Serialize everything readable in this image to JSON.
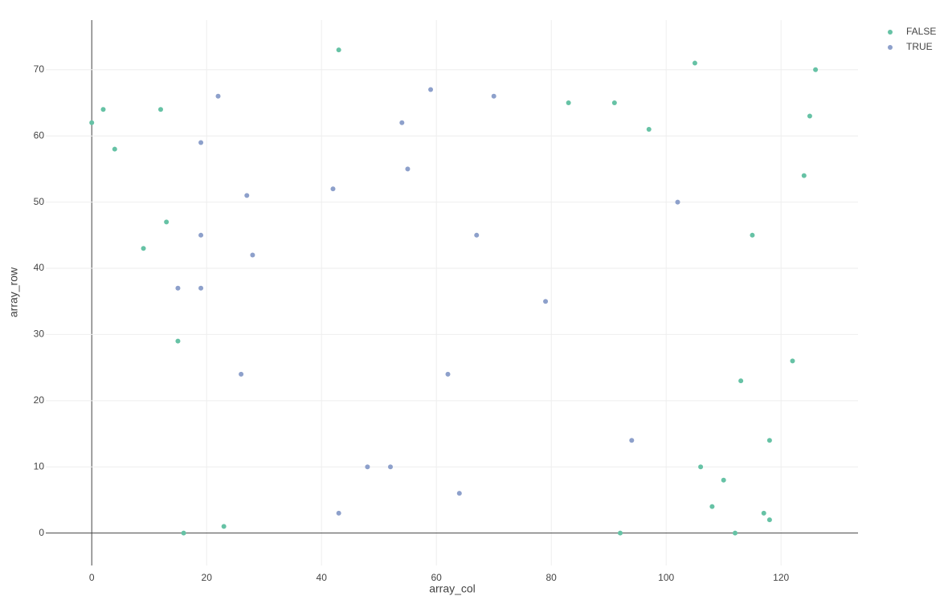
{
  "chart_data": {
    "type": "scatter",
    "x_label": "array_col",
    "y_label": "array_row",
    "xlim": [
      -8,
      133.4
    ],
    "ylim": [
      -4.9,
      77.5
    ],
    "xticks": [
      0,
      20,
      40,
      60,
      80,
      100,
      120
    ],
    "yticks": [
      0,
      10,
      20,
      30,
      40,
      50,
      60,
      70
    ],
    "grid": true,
    "legend": "top-right",
    "series": [
      {
        "name": "FALSE",
        "color": "#66c2a5",
        "x": [
          0,
          2,
          4,
          12,
          13,
          9,
          15,
          16,
          23,
          43,
          83,
          91,
          97,
          105,
          126,
          125,
          124,
          115,
          122,
          113,
          118,
          106,
          110,
          108,
          117,
          118,
          112,
          92
        ],
        "values": [
          62,
          64,
          58,
          64,
          47,
          43,
          29,
          0,
          1,
          73,
          65,
          65,
          61,
          71,
          70,
          63,
          54,
          45,
          26,
          23,
          14,
          10,
          8,
          4,
          3,
          2,
          0,
          0
        ]
      },
      {
        "name": "TRUE",
        "color": "#8da0cb",
        "x": [
          22,
          19,
          27,
          19,
          28,
          15,
          19,
          26,
          42,
          54,
          59,
          55,
          70,
          67,
          79,
          62,
          48,
          52,
          43,
          64,
          94,
          102
        ],
        "values": [
          66,
          59,
          51,
          45,
          42,
          37,
          37,
          24,
          52,
          62,
          67,
          55,
          66,
          45,
          35,
          24,
          10,
          10,
          3,
          6,
          14,
          50
        ]
      }
    ]
  }
}
